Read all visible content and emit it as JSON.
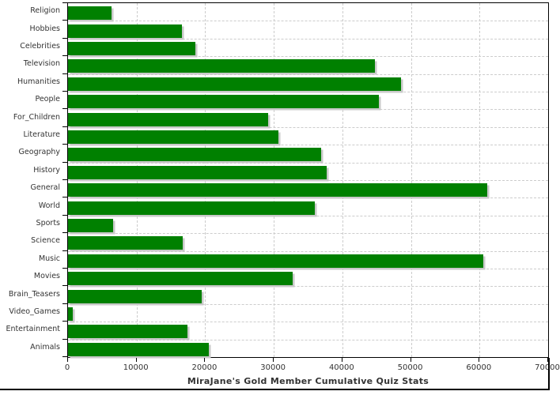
{
  "chart_data": {
    "type": "bar",
    "orientation": "horizontal",
    "title": "MiraJane's Gold Member Cumulative Quiz Stats",
    "categories": [
      "Religion",
      "Hobbies",
      "Celebrities",
      "Television",
      "Humanities",
      "People",
      "For_Children",
      "Literature",
      "Geography",
      "History",
      "General",
      "World",
      "Sports",
      "Science",
      "Music",
      "Movies",
      "Brain_Teasers",
      "Video_Games",
      "Entertainment",
      "Animals"
    ],
    "values": [
      6400,
      16600,
      18600,
      44700,
      48600,
      45300,
      29200,
      30700,
      36900,
      37700,
      61100,
      36000,
      6600,
      16700,
      60500,
      32800,
      19500,
      700,
      17400,
      20500
    ],
    "xlim": [
      0,
      70000
    ],
    "x_tick_labels": [
      "0",
      "10000",
      "20000",
      "30000",
      "40000",
      "50000",
      "60000",
      "70000"
    ],
    "grid": true,
    "legend": "none",
    "bar_color": "#008000",
    "gridline_color": "#cccccc",
    "axis_border_color": "#000000",
    "label_color": "#333333",
    "shadow_color": "#c9c9c9",
    "background_color": "#ffffff"
  }
}
